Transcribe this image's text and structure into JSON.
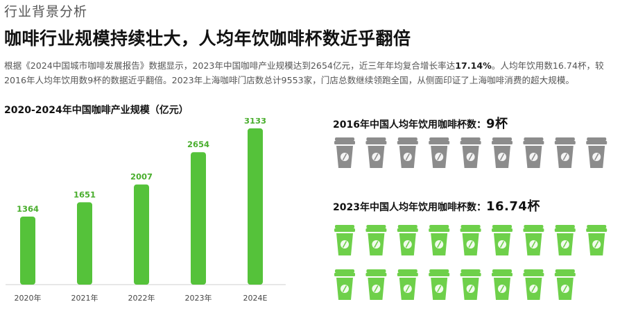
{
  "section_label": "行业背景分析",
  "headline": "咖啡行业规模持续壮大，人均年饮咖啡杯数近乎翻倍",
  "description": {
    "part1": "根据《2024中国城市咖啡发展报告》数据显示，2023年中国咖啡产业规模达到2654亿元，近三年年均复合增长率达",
    "highlight": "17.14%",
    "part2": "。人均年饮用数16.74杯，较2016年人均年饮用数9杯的数据近乎翻倍。2023年上海咖啡门店数总计9553家，门店总数继续领跑全国，从侧面印证了上海咖啡消费的超大规模。"
  },
  "chart_data": [
    {
      "type": "bar",
      "title": "2020-2024年中国咖啡产业规模（亿元）",
      "categories": [
        "2020年",
        "2021年",
        "2022年",
        "2023年",
        "2024E"
      ],
      "values": [
        1364,
        1651,
        2007,
        2654,
        3133
      ],
      "ylim": [
        0,
        3200
      ],
      "grid": false,
      "bar_color": "#55c23a"
    },
    {
      "type": "pictogram",
      "title_prefix": "2016年中国人均年饮用咖啡杯数：",
      "value_label": "9杯",
      "value": 9,
      "cup_color": "#8c8c8c"
    },
    {
      "type": "pictogram",
      "title_prefix": "2023年中国人均年饮用咖啡杯数：",
      "value_label": "16.74杯",
      "value": 16.74,
      "cup_color": "#6ed04a"
    }
  ]
}
